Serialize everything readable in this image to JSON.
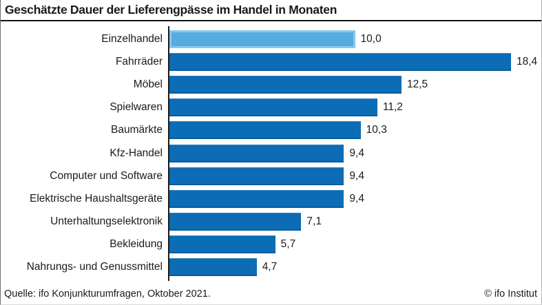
{
  "title": "Geschätzte Dauer der Lieferengpässe im Handel in Monaten",
  "footer": {
    "source": "Quelle: ifo Konjunkturumfragen, Oktober 2021.",
    "copyright": "© ifo Institut"
  },
  "chart_data": {
    "type": "bar",
    "orientation": "horizontal",
    "title": "Geschätzte Dauer der Lieferengpässe im Handel in Monaten",
    "categories": [
      "Einzelhandel",
      "Fahrräder",
      "Möbel",
      "Spielwaren",
      "Baumärkte",
      "Kfz-Handel",
      "Computer und Software",
      "Elektrische Haushaltsgeräte",
      "Unterhaltungselektronik",
      "Bekleidung",
      "Nahrungs- und Genussmittel"
    ],
    "values": [
      10.0,
      18.4,
      12.5,
      11.2,
      10.3,
      9.4,
      9.4,
      9.4,
      7.1,
      5.7,
      4.7
    ],
    "value_labels": [
      "10,0",
      "18,4",
      "12,5",
      "11,2",
      "10,3",
      "9,4",
      "9,4",
      "9,4",
      "7,1",
      "5,7",
      "4,7"
    ],
    "xlim": [
      0,
      18.4
    ],
    "grid": false,
    "legend": false,
    "highlight_index": 0,
    "colors": {
      "highlight": "#56abe1",
      "default": "#0c6db6",
      "axis": "#1a1a1a"
    }
  }
}
